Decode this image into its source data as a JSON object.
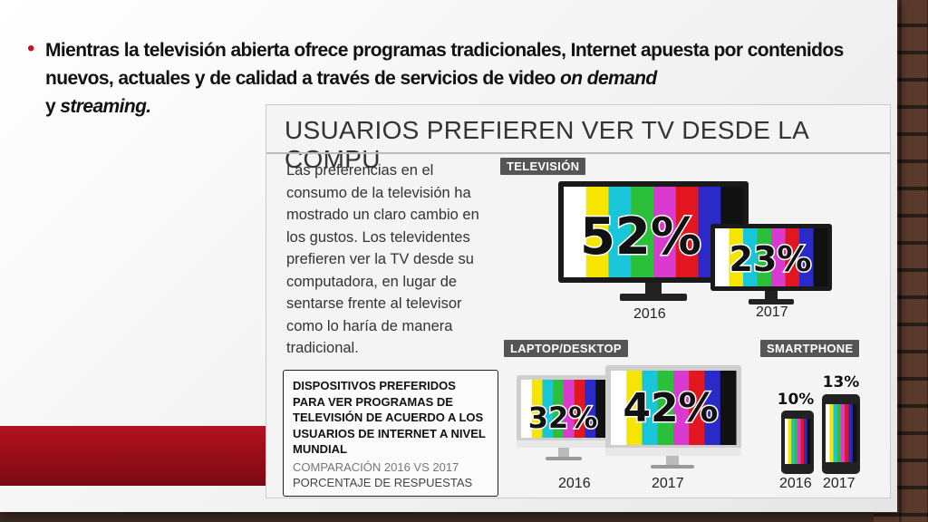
{
  "slide": {
    "bullet": {
      "text_main": "Mientras la televisión abierta ofrece programas tradicionales, Internet apuesta por contenidos nuevos, actuales y de calidad a través de servicios de video ",
      "em1": "on demand",
      "joiner": " y ",
      "em2": "streaming.",
      "bullet_color": "#c0121f"
    },
    "accent_color": "#b3121f"
  },
  "infographic": {
    "title": "USUARIOS PREFIEREN VER TV DESDE LA COMPU",
    "description": "Las preferencias en el consumo de la televisión ha mostrado un claro cambio en los gustos. Los televidentes prefieren ver la TV desde su computadora, en lugar de sentarse frente al televisor como lo haría de manera tradicional.",
    "devices_box": {
      "title": "DISPOSITIVOS PREFERIDOS PARA VER PROGRAMAS DE TELEVISIÓN DE ACUERDO A LOS USUARIOS DE INTERNET A NIVEL MUNDIAL",
      "subtitle": "COMPARACIÓN 2016 VS 2017",
      "subtitle2": "PORCENTAJE DE RESPUESTAS"
    },
    "sections": {
      "television": "TELEVISIÓN",
      "laptop": "LAPTOP/DESKTOP",
      "smartphone": "SMARTPHONE"
    },
    "color_bars": [
      "#ffffff",
      "#f5e500",
      "#19c6d9",
      "#2bbf3a",
      "#d93ad0",
      "#e2161e",
      "#2a2ac9",
      "#111111"
    ],
    "chart_data": {
      "type": "bar",
      "categories": [
        "2016",
        "2017"
      ],
      "series": [
        {
          "name": "TELEVISIÓN",
          "values": [
            52,
            23
          ],
          "labels": [
            "52%",
            "23%"
          ]
        },
        {
          "name": "LAPTOP/DESKTOP",
          "values": [
            32,
            42
          ],
          "labels": [
            "32%",
            "42%"
          ]
        },
        {
          "name": "SMARTPHONE",
          "values": [
            10,
            13
          ],
          "labels": [
            "10%",
            "13%"
          ]
        }
      ],
      "title": "USUARIOS PREFIEREN VER TV DESDE LA COMPU"
    }
  }
}
